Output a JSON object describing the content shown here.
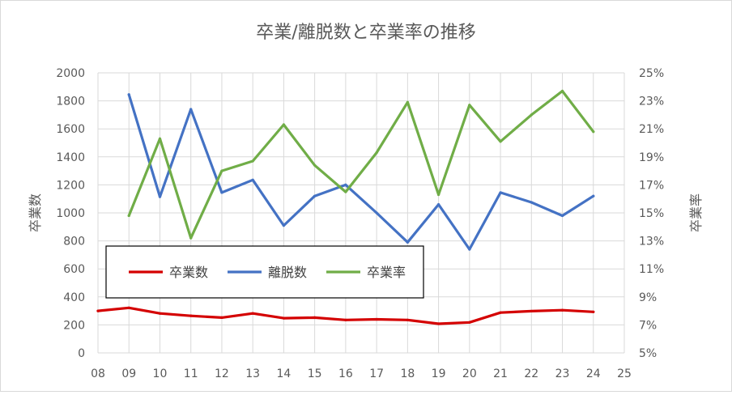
{
  "chart_data": {
    "type": "line",
    "title": "卒業/離脱数と卒業率の推移",
    "xlabel": "",
    "ylabel": "卒業数",
    "y2label": "卒業率",
    "categories": [
      "08",
      "09",
      "10",
      "11",
      "12",
      "13",
      "14",
      "15",
      "16",
      "17",
      "18",
      "19",
      "20",
      "21",
      "22",
      "23",
      "24",
      "25"
    ],
    "ylim": [
      0,
      2000
    ],
    "y_ticks": [
      0,
      200,
      400,
      600,
      800,
      1000,
      1200,
      1400,
      1600,
      1800,
      2000
    ],
    "y2lim": [
      5,
      25
    ],
    "y2_ticks": [
      "5%",
      "7%",
      "9%",
      "11%",
      "13%",
      "15%",
      "17%",
      "19%",
      "21%",
      "23%",
      "25%"
    ],
    "grid": true,
    "legend_position": "lower-left inside",
    "series": [
      {
        "name": "卒業数",
        "axis": "left",
        "color": "#d40000",
        "values": [
          300,
          322,
          282,
          265,
          252,
          282,
          248,
          252,
          235,
          240,
          235,
          208,
          218,
          288,
          298,
          305,
          293,
          null
        ]
      },
      {
        "name": "離脱数",
        "axis": "left",
        "color": "#4472c4",
        "values": [
          null,
          1845,
          1115,
          1740,
          1145,
          1235,
          910,
          1120,
          1200,
          1000,
          790,
          1060,
          740,
          1145,
          1075,
          980,
          1120,
          null
        ]
      },
      {
        "name": "卒業率",
        "axis": "right",
        "color": "#70ad47",
        "values": [
          null,
          14.8,
          20.3,
          13.2,
          18.0,
          18.7,
          21.3,
          18.4,
          16.5,
          19.3,
          22.9,
          16.3,
          22.7,
          20.1,
          22.0,
          23.7,
          20.8,
          null
        ]
      }
    ]
  }
}
